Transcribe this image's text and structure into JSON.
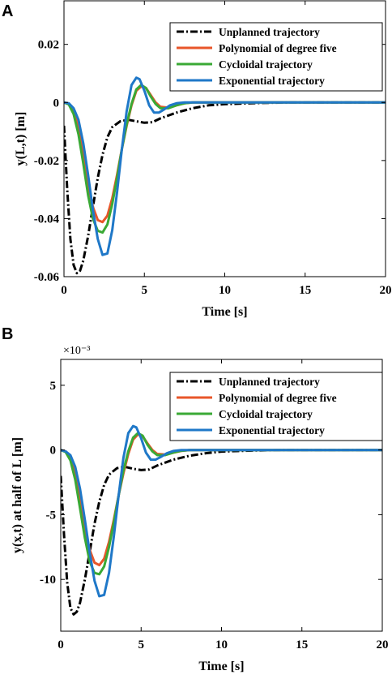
{
  "chart_data": [
    {
      "type": "line",
      "panel": "A",
      "xlabel": "Time [s]",
      "ylabel": "y(L,t) [m]",
      "xlim": [
        0,
        20
      ],
      "ylim": [
        -0.06,
        0.035
      ],
      "xticks": [
        0,
        5,
        10,
        15,
        20
      ],
      "xtick_labels": [
        "0",
        "5",
        "10",
        "15",
        "20"
      ],
      "yticks": [
        -0.06,
        -0.04,
        -0.02,
        0,
        0.02
      ],
      "ytick_labels": [
        "-0.06",
        "-0.04",
        "-0.02",
        "0",
        "0.02"
      ],
      "grid": false,
      "legend_position": "top-right",
      "series": [
        {
          "name": "Unplanned trajectory",
          "color": "#000000",
          "dash": "dashdot",
          "x": [
            0,
            0.2,
            0.4,
            0.6,
            0.8,
            1.0,
            1.2,
            1.5,
            1.8,
            2.1,
            2.4,
            2.7,
            3.0,
            3.5,
            4.0,
            4.5,
            5.0,
            5.5,
            6.0,
            7.0,
            8.0,
            9.0,
            10.0,
            12.0,
            14.0,
            16.0,
            18.0,
            20.0
          ],
          "y": [
            -0.008,
            -0.03,
            -0.047,
            -0.056,
            -0.0588,
            -0.058,
            -0.0545,
            -0.046,
            -0.036,
            -0.026,
            -0.018,
            -0.012,
            -0.0085,
            -0.0065,
            -0.006,
            -0.0065,
            -0.007,
            -0.0068,
            -0.0055,
            -0.0035,
            -0.002,
            -0.001,
            -0.0006,
            -0.0002,
            0,
            0,
            0,
            0
          ]
        },
        {
          "name": "Polynomial of degree five",
          "color": "#e8562a",
          "dash": "solid",
          "x": [
            0,
            0.3,
            0.6,
            0.9,
            1.2,
            1.5,
            1.8,
            2.1,
            2.4,
            2.7,
            3.0,
            3.3,
            3.6,
            3.9,
            4.2,
            4.5,
            4.8,
            5.1,
            5.4,
            5.7,
            6.0,
            6.5,
            7.0,
            7.5,
            8.0,
            9.0,
            10.0,
            20.0
          ],
          "y": [
            0,
            -0.0005,
            -0.003,
            -0.009,
            -0.018,
            -0.028,
            -0.036,
            -0.0405,
            -0.0412,
            -0.039,
            -0.033,
            -0.025,
            -0.016,
            -0.008,
            -0.001,
            0.004,
            0.0055,
            0.005,
            0.0025,
            0,
            -0.0015,
            -0.0018,
            -0.001,
            -0.0003,
            0,
            0,
            0,
            0
          ]
        },
        {
          "name": "Cycloidal trajectory",
          "color": "#3aa935",
          "dash": "solid",
          "x": [
            0,
            0.3,
            0.6,
            0.9,
            1.2,
            1.5,
            1.8,
            2.1,
            2.4,
            2.7,
            3.0,
            3.3,
            3.6,
            3.9,
            4.2,
            4.5,
            4.8,
            5.1,
            5.4,
            5.7,
            6.0,
            6.5,
            7.0,
            7.5,
            8.0,
            9.0,
            10.0,
            20.0
          ],
          "y": [
            0,
            -0.0007,
            -0.004,
            -0.011,
            -0.021,
            -0.032,
            -0.04,
            -0.0442,
            -0.0448,
            -0.042,
            -0.035,
            -0.026,
            -0.016,
            -0.0075,
            -0.0005,
            0.0045,
            0.006,
            0.005,
            0.002,
            -0.0005,
            -0.002,
            -0.002,
            -0.001,
            -0.0003,
            0,
            0,
            0,
            0
          ]
        },
        {
          "name": "Exponential trajectory",
          "color": "#1f78c8",
          "dash": "solid",
          "x": [
            0,
            0.3,
            0.6,
            0.9,
            1.2,
            1.5,
            1.8,
            2.1,
            2.4,
            2.7,
            3.0,
            3.3,
            3.6,
            3.9,
            4.2,
            4.5,
            4.7,
            5.0,
            5.3,
            5.6,
            5.9,
            6.2,
            6.6,
            7.0,
            7.5,
            8.0,
            9.0,
            10.0,
            20.0
          ],
          "y": [
            0,
            -0.0003,
            -0.002,
            -0.006,
            -0.014,
            -0.025,
            -0.037,
            -0.047,
            -0.0525,
            -0.052,
            -0.044,
            -0.031,
            -0.016,
            -0.003,
            0.006,
            0.0085,
            0.008,
            0.004,
            -0.001,
            -0.0035,
            -0.0035,
            -0.0025,
            -0.001,
            -0.0003,
            0,
            0,
            0,
            0,
            0
          ]
        }
      ]
    },
    {
      "type": "line",
      "panel": "B",
      "xlabel": "Time [s]",
      "ylabel": "y(x,t) at half of L [m]",
      "axis_multiplier": "×10⁻³",
      "xlim": [
        0,
        20
      ],
      "ylim": [
        -14,
        7
      ],
      "xticks": [
        0,
        5,
        10,
        15,
        20
      ],
      "xtick_labels": [
        "0",
        "5",
        "10",
        "15",
        "20"
      ],
      "yticks": [
        -10,
        -5,
        0,
        5
      ],
      "ytick_labels": [
        "-10",
        "-5",
        "0",
        "5"
      ],
      "grid": false,
      "legend_position": "top-right",
      "series": [
        {
          "name": "Unplanned trajectory",
          "color": "#000000",
          "dash": "dashdot",
          "x": [
            0,
            0.2,
            0.4,
            0.6,
            0.8,
            1.0,
            1.2,
            1.5,
            1.8,
            2.1,
            2.4,
            2.7,
            3.0,
            3.5,
            4.0,
            4.5,
            5.0,
            5.5,
            6.0,
            7.0,
            8.0,
            9.0,
            10.0,
            12.0,
            14.0,
            16.0,
            18.0,
            20.0
          ],
          "y": [
            -2,
            -6.5,
            -10.2,
            -12.2,
            -12.7,
            -12.5,
            -11.8,
            -10.0,
            -7.9,
            -5.7,
            -4.0,
            -2.7,
            -1.9,
            -1.4,
            -1.3,
            -1.45,
            -1.55,
            -1.5,
            -1.2,
            -0.75,
            -0.45,
            -0.25,
            -0.12,
            -0.04,
            0,
            0,
            0,
            0
          ]
        },
        {
          "name": "Polynomial of degree five",
          "color": "#e8562a",
          "dash": "solid",
          "x": [
            0,
            0.3,
            0.6,
            0.9,
            1.2,
            1.5,
            1.8,
            2.1,
            2.4,
            2.7,
            3.0,
            3.3,
            3.6,
            3.9,
            4.2,
            4.5,
            4.8,
            5.1,
            5.4,
            5.7,
            6.0,
            6.5,
            7.0,
            7.5,
            8.0,
            9.0,
            10.0,
            20.0
          ],
          "y": [
            0,
            -0.1,
            -0.6,
            -1.9,
            -3.9,
            -6.0,
            -7.7,
            -8.7,
            -8.9,
            -8.4,
            -7.1,
            -5.4,
            -3.5,
            -1.8,
            -0.3,
            0.8,
            1.2,
            1.05,
            0.5,
            0,
            -0.3,
            -0.35,
            -0.2,
            -0.07,
            0,
            0,
            0,
            0
          ]
        },
        {
          "name": "Cycloidal trajectory",
          "color": "#3aa935",
          "dash": "solid",
          "x": [
            0,
            0.3,
            0.6,
            0.9,
            1.2,
            1.5,
            1.8,
            2.1,
            2.4,
            2.7,
            3.0,
            3.3,
            3.6,
            3.9,
            4.2,
            4.5,
            4.8,
            5.1,
            5.4,
            5.7,
            6.0,
            6.5,
            7.0,
            7.5,
            8.0,
            9.0,
            10.0,
            20.0
          ],
          "y": [
            0,
            -0.15,
            -0.8,
            -2.3,
            -4.5,
            -6.8,
            -8.6,
            -9.5,
            -9.6,
            -9.0,
            -7.5,
            -5.6,
            -3.5,
            -1.6,
            -0.1,
            0.95,
            1.3,
            1.1,
            0.4,
            -0.1,
            -0.4,
            -0.4,
            -0.2,
            -0.06,
            0,
            0,
            0,
            0
          ]
        },
        {
          "name": "Exponential trajectory",
          "color": "#1f78c8",
          "dash": "solid",
          "x": [
            0,
            0.3,
            0.6,
            0.9,
            1.2,
            1.5,
            1.8,
            2.1,
            2.4,
            2.7,
            3.0,
            3.3,
            3.6,
            3.9,
            4.2,
            4.5,
            4.7,
            5.0,
            5.3,
            5.6,
            5.9,
            6.2,
            6.6,
            7.0,
            7.5,
            8.0,
            9.0,
            10.0,
            20.0
          ],
          "y": [
            0,
            -0.1,
            -0.4,
            -1.3,
            -3.0,
            -5.4,
            -7.9,
            -10.1,
            -11.3,
            -11.2,
            -9.5,
            -6.7,
            -3.5,
            -0.6,
            1.3,
            1.85,
            1.75,
            0.9,
            -0.2,
            -0.75,
            -0.75,
            -0.55,
            -0.25,
            -0.08,
            0,
            0,
            0,
            0,
            0
          ]
        }
      ]
    }
  ]
}
